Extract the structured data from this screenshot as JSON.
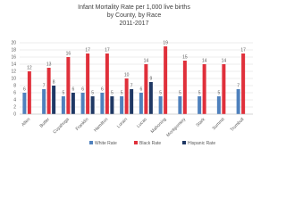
{
  "chart_data": {
    "type": "bar",
    "title": "Infant Mortality Rate per 1,000 live births",
    "subtitle": "by County, by Race",
    "period": "2011-2017",
    "categories": [
      "Allen",
      "Butler",
      "Cuyahoga",
      "Franklin",
      "Hamilton",
      "Lorain",
      "Lucas",
      "Mahoning",
      "Montgomery",
      "Stark",
      "Summit",
      "Trumbull"
    ],
    "series": [
      {
        "name": "White Rate",
        "color": "#4f81bd",
        "values": [
          6,
          7,
          5,
          6,
          6,
          5,
          6,
          5,
          5,
          5,
          5,
          7
        ]
      },
      {
        "name": "Black Rate",
        "color": "#e0303b",
        "values": [
          12,
          13,
          16,
          17,
          17,
          10,
          14,
          19,
          15,
          14,
          14,
          17
        ]
      },
      {
        "name": "Hispanic Rate",
        "color": "#1f3864",
        "values": [
          null,
          8,
          6,
          5,
          5,
          7,
          9,
          null,
          null,
          null,
          null,
          null
        ]
      }
    ],
    "ylim": [
      0,
      20
    ],
    "yticks": [
      0,
      2,
      4,
      6,
      8,
      10,
      12,
      14,
      16,
      18,
      20
    ],
    "grid": true
  }
}
